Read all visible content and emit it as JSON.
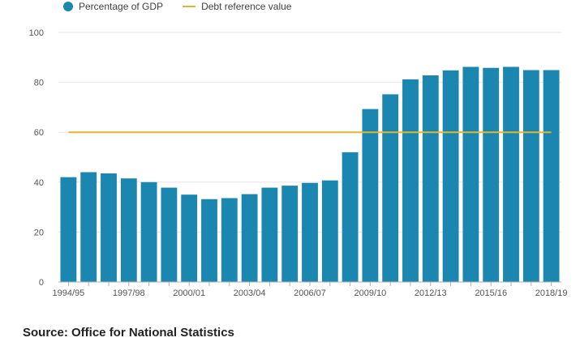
{
  "chart_data": {
    "type": "bar",
    "title": "",
    "xlabel": "",
    "ylabel": "",
    "ylim": [
      0,
      100
    ],
    "yticks": [
      0,
      20,
      40,
      60,
      80,
      100
    ],
    "categories": [
      "1994/95",
      "1995/96",
      "1996/97",
      "1997/98",
      "1998/99",
      "1999/00",
      "2000/01",
      "2001/02",
      "2002/03",
      "2003/04",
      "2004/05",
      "2005/06",
      "2006/07",
      "2007/08",
      "2008/09",
      "2009/10",
      "2010/11",
      "2011/12",
      "2012/13",
      "2013/14",
      "2014/15",
      "2015/16",
      "2016/17",
      "2017/18",
      "2018/19"
    ],
    "tick_labels": [
      "1994/95",
      "1997/98",
      "2000/01",
      "2003/04",
      "2006/07",
      "2009/10",
      "2012/13",
      "2015/16",
      "2018/19"
    ],
    "series": [
      {
        "name": "Percentage of GDP",
        "type": "bar",
        "color": "#1b87b0",
        "values": [
          42,
          44,
          43.5,
          41.5,
          40,
          37.8,
          35,
          33.2,
          33.6,
          35.2,
          37.8,
          38.6,
          39.7,
          40.7,
          52,
          69.3,
          75.2,
          81.2,
          82.8,
          84.8,
          86.2,
          85.8,
          86.2,
          84.9,
          84.9
        ]
      },
      {
        "name": "Debt reference value",
        "type": "line",
        "color": "#e0b830",
        "value": 60
      }
    ],
    "legend_position": "top-left",
    "grid": true
  },
  "legend": {
    "series_1": "Percentage of GDP",
    "series_2": "Debt reference value",
    "series_1_color": "#1b87b0",
    "series_2_color": "#e0b830"
  },
  "source": "Source: Office for National Statistics"
}
